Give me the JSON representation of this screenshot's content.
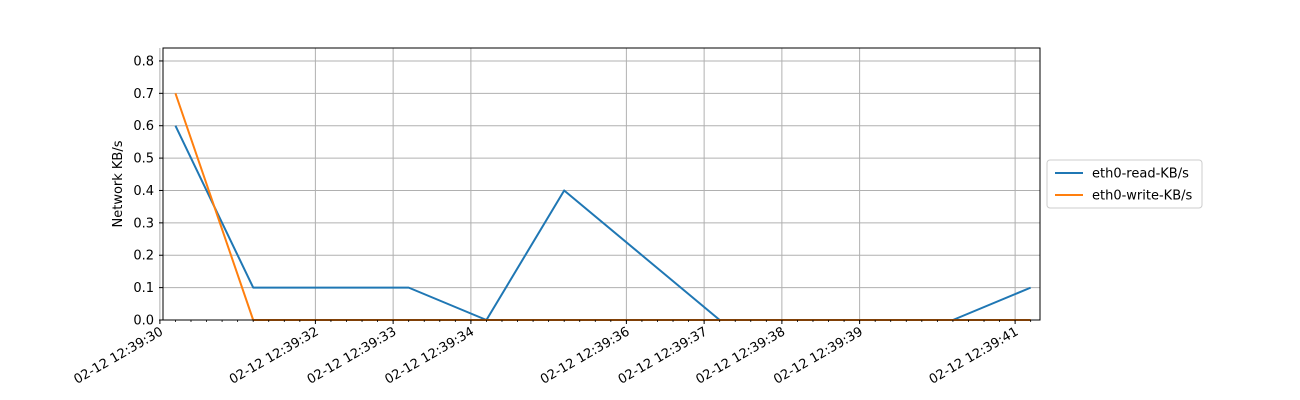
{
  "chart_data": {
    "type": "line",
    "title": "",
    "xlabel": "",
    "ylabel": "Network KB/s",
    "ylim": [
      0,
      0.84
    ],
    "xlim": [
      "02-12 12:39:30.04",
      "02-12 12:39:41.32"
    ],
    "grid": true,
    "legend_position": "right-outside",
    "y_ticks": [
      "0.0",
      "0.1",
      "0.2",
      "0.3",
      "0.4",
      "0.5",
      "0.6",
      "0.7",
      "0.8"
    ],
    "x_ticks": [
      "02-12 12:39:30",
      "02-12 12:39:32",
      "02-12 12:39:33",
      "02-12 12:39:34",
      "02-12 12:39:36",
      "02-12 12:39:37",
      "02-12 12:39:38",
      "02-12 12:39:39",
      "02-12 12:39:41"
    ],
    "x": [
      "02-12 12:39:30.2",
      "02-12 12:39:31.2",
      "02-12 12:39:32.2",
      "02-12 12:39:33.2",
      "02-12 12:39:34.2",
      "02-12 12:39:35.2",
      "02-12 12:39:36.2",
      "02-12 12:39:37.2",
      "02-12 12:39:38.2",
      "02-12 12:39:39.2",
      "02-12 12:39:40.2",
      "02-12 12:39:41.2"
    ],
    "series": [
      {
        "name": "eth0-read-KB/s",
        "color": "#1f77b4",
        "values": [
          0.6,
          0.1,
          0.1,
          0.1,
          0.0,
          0.4,
          0.2,
          0.0,
          0.0,
          0.0,
          0.0,
          0.1
        ]
      },
      {
        "name": "eth0-write-KB/s",
        "color": "#ff7f0e",
        "values": [
          0.7,
          0.0,
          0.0,
          0.0,
          0.0,
          0.0,
          0.0,
          0.0,
          0.0,
          0.0,
          0.0,
          0.0
        ]
      }
    ]
  }
}
